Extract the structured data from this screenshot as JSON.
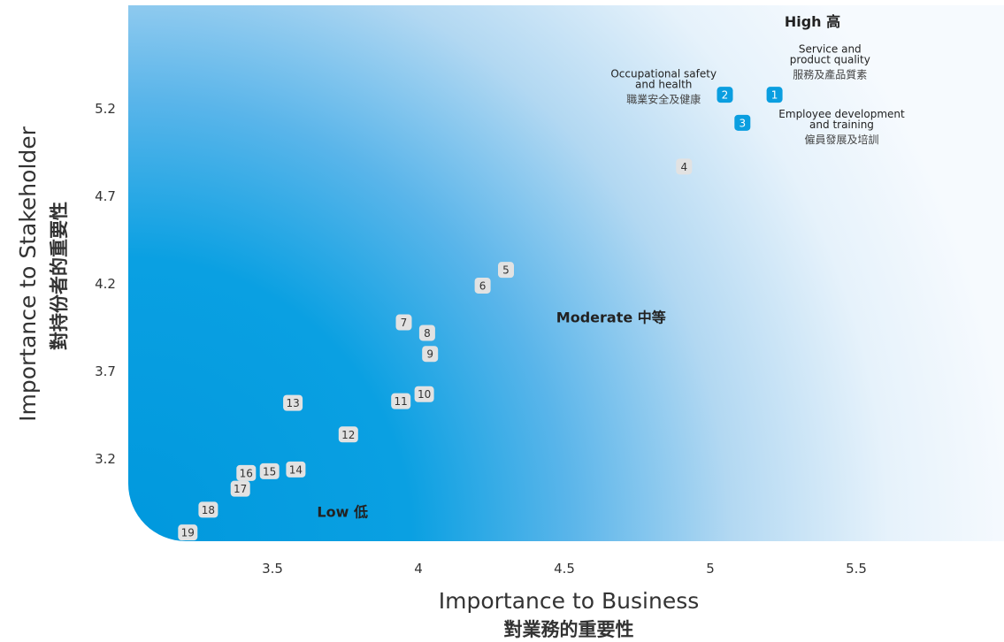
{
  "chart_data": {
    "type": "scatter",
    "title": "",
    "xlabel": "Importance to Business",
    "xlabel_zh": "對業務的重要性",
    "ylabel": "Importance to Stakeholder",
    "ylabel_zh": "對持份者的重要性",
    "xlim": [
      3.0,
      6.0
    ],
    "ylim": [
      2.75,
      5.75
    ],
    "x_ticks": [
      3.5,
      4,
      4.5,
      5,
      5.5
    ],
    "x_tick_labels": [
      "3.5",
      "4",
      "4.5",
      "5",
      "5.5"
    ],
    "y_ticks": [
      3.2,
      3.7,
      4.2,
      4.7,
      5.2
    ],
    "y_tick_labels": [
      "3.2",
      "3.7",
      "4.2",
      "4.7",
      "5.2"
    ],
    "grid": false,
    "legend": "none",
    "zones": [
      {
        "id": "high",
        "label": "High 高",
        "x": 5.35,
        "y": 5.67
      },
      {
        "id": "moderate",
        "label": "Moderate 中等",
        "x": 4.66,
        "y": 3.98
      },
      {
        "id": "low",
        "label": "Low 低",
        "x": 3.74,
        "y": 2.87
      }
    ],
    "points": [
      {
        "id": "1",
        "x": 5.22,
        "y": 5.28,
        "highlight": true
      },
      {
        "id": "2",
        "x": 5.05,
        "y": 5.28,
        "highlight": true
      },
      {
        "id": "3",
        "x": 5.11,
        "y": 5.12,
        "highlight": true
      },
      {
        "id": "4",
        "x": 4.91,
        "y": 4.87,
        "highlight": false
      },
      {
        "id": "5",
        "x": 4.3,
        "y": 4.28,
        "highlight": false
      },
      {
        "id": "6",
        "x": 4.22,
        "y": 4.19,
        "highlight": false
      },
      {
        "id": "7",
        "x": 3.95,
        "y": 3.98,
        "highlight": false
      },
      {
        "id": "8",
        "x": 4.03,
        "y": 3.92,
        "highlight": false
      },
      {
        "id": "9",
        "x": 4.04,
        "y": 3.8,
        "highlight": false
      },
      {
        "id": "10",
        "x": 4.02,
        "y": 3.57,
        "highlight": false
      },
      {
        "id": "11",
        "x": 3.94,
        "y": 3.53,
        "highlight": false
      },
      {
        "id": "12",
        "x": 3.76,
        "y": 3.34,
        "highlight": false
      },
      {
        "id": "13",
        "x": 3.57,
        "y": 3.52,
        "highlight": false
      },
      {
        "id": "14",
        "x": 3.58,
        "y": 3.14,
        "highlight": false
      },
      {
        "id": "15",
        "x": 3.49,
        "y": 3.13,
        "highlight": false
      },
      {
        "id": "16",
        "x": 3.41,
        "y": 3.12,
        "highlight": false
      },
      {
        "id": "17",
        "x": 3.39,
        "y": 3.03,
        "highlight": false
      },
      {
        "id": "18",
        "x": 3.28,
        "y": 2.91,
        "highlight": false
      },
      {
        "id": "19",
        "x": 3.21,
        "y": 2.78,
        "highlight": false
      }
    ],
    "annotations": [
      {
        "id": "1",
        "x": 5.41,
        "lines": [
          "Service and",
          "product quality"
        ],
        "zh": "服務及產品質素",
        "top": 5.52
      },
      {
        "id": "2",
        "x": 4.84,
        "lines": [
          "Occupational safety",
          "and health"
        ],
        "zh": "職業安全及健康",
        "top": 5.38
      },
      {
        "id": "3",
        "x": 5.45,
        "lines": [
          "Employee development",
          "and training"
        ],
        "zh": "僱員發展及培訓",
        "top": 5.15
      }
    ]
  },
  "colors": {
    "deep_blue": "#0a9ee0",
    "light_blue": "#cfe6f7",
    "marker_fill": "#e2e2e2",
    "marker_text": "#333333",
    "highlight_fill": "#0a9ee0",
    "highlight_text": "#ffffff"
  }
}
